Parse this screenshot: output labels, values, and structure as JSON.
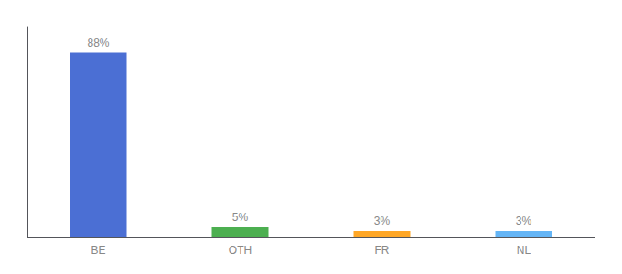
{
  "chart_data": {
    "type": "bar",
    "categories": [
      "BE",
      "OTH",
      "FR",
      "NL"
    ],
    "values": [
      88,
      5,
      3,
      3
    ],
    "value_labels": [
      "88%",
      "5%",
      "3%",
      "3%"
    ],
    "colors": [
      "#4b6fd4",
      "#4caf50",
      "#ffa726",
      "#64b5f6"
    ],
    "ylim": [
      0,
      100
    ],
    "data_labels": true,
    "tick_labels": "x",
    "grid": false
  }
}
